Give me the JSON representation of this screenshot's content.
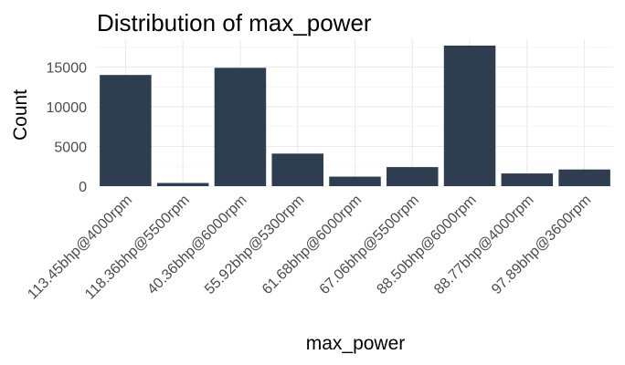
{
  "chart_data": {
    "type": "bar",
    "title": "Distribution of max_power",
    "xlabel": "max_power",
    "ylabel": "Count",
    "categories": [
      "113.45bhp@4000rpm",
      "118.36bhp@5500rpm",
      "40.36bhp@6000rpm",
      "55.92bhp@5300rpm",
      "61.68bhp@6000rpm",
      "67.06bhp@5500rpm",
      "88.50bhp@6000rpm",
      "88.77bhp@4000rpm",
      "97.89bhp@3600rpm"
    ],
    "values": [
      14000,
      400,
      14900,
      4100,
      1200,
      2400,
      17700,
      1600,
      2100
    ],
    "ylim": [
      0,
      18500
    ],
    "yticks": [
      0,
      5000,
      10000,
      15000
    ],
    "grid": true,
    "bar_color": "#2e3e50"
  }
}
